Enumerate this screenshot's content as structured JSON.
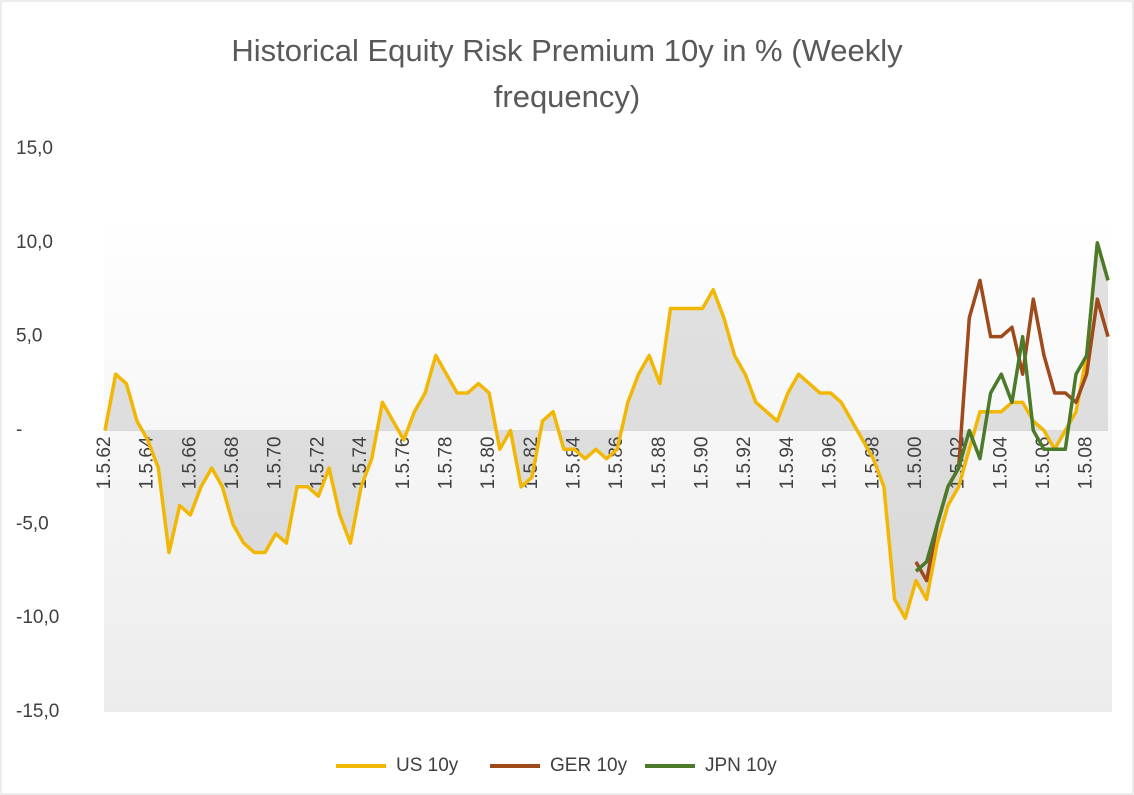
{
  "chart_data": {
    "type": "line",
    "title": "Historical Equity Risk Premium 10y in % (Weekly frequency)",
    "categories": [
      "1.5.62",
      null,
      null,
      null,
      "1.5.64",
      null,
      null,
      null,
      "1.5.66",
      null,
      null,
      null,
      "1.5.68",
      null,
      null,
      null,
      "1.5.70",
      null,
      null,
      null,
      "1.5.72",
      null,
      null,
      null,
      "1.5.74",
      null,
      null,
      null,
      "1.5.76",
      null,
      null,
      null,
      "1.5.78",
      null,
      null,
      null,
      "1.5.80",
      null,
      null,
      null,
      "1.5.82",
      null,
      null,
      null,
      "1.5.84",
      null,
      null,
      null,
      "1.5.86",
      null,
      null,
      null,
      "1.5.88",
      null,
      null,
      null,
      "1.5.90",
      null,
      null,
      null,
      "1.5.92",
      null,
      null,
      null,
      "1.5.94",
      null,
      null,
      null,
      "1.5.96",
      null,
      null,
      null,
      "1.5.98",
      null,
      null,
      null,
      "1.5.00",
      null,
      null,
      null,
      "1.5.02",
      null,
      null,
      null,
      "1.5.04",
      null,
      null,
      null,
      "1.5.06",
      null,
      null,
      null,
      "1.5.08",
      null,
      null
    ],
    "series": [
      {
        "name": "US 10y",
        "color": "#f2b705",
        "values": [
          0,
          3,
          2.5,
          0.5,
          -0.5,
          -2,
          -6.5,
          -4,
          -4.5,
          -3,
          -2,
          -3,
          -5,
          -6,
          -6.5,
          -6.5,
          -5.5,
          -6,
          -3,
          -3,
          -3.5,
          -2,
          -4.5,
          -6,
          -3,
          -1.5,
          1.5,
          0.5,
          -0.5,
          1,
          2,
          4,
          3,
          2,
          2,
          2.5,
          2,
          -1,
          0,
          -3,
          -2.5,
          0.5,
          1,
          -1,
          -1,
          -1.5,
          -1,
          -1.5,
          -1,
          1.5,
          3,
          4,
          2.5,
          6.5,
          6.5,
          6.5,
          6.5,
          7.5,
          6,
          4,
          3,
          1.5,
          1,
          0.5,
          2,
          3,
          2.5,
          2,
          2,
          1.5,
          0.5,
          -0.5,
          -1.5,
          -3,
          -9,
          -10,
          -8,
          -9,
          -6,
          -4,
          -3,
          -1,
          1,
          1,
          1,
          1.5,
          1.5,
          0.5,
          0,
          -1,
          0,
          1,
          4,
          10,
          8
        ]
      },
      {
        "name": "GER 10y",
        "color": "#9e4a1b",
        "values": [
          null,
          null,
          null,
          null,
          null,
          null,
          null,
          null,
          null,
          null,
          null,
          null,
          null,
          null,
          null,
          null,
          null,
          null,
          null,
          null,
          null,
          null,
          null,
          null,
          null,
          null,
          null,
          null,
          null,
          null,
          null,
          null,
          null,
          null,
          null,
          null,
          null,
          null,
          null,
          null,
          null,
          null,
          null,
          null,
          null,
          null,
          null,
          null,
          null,
          null,
          null,
          null,
          null,
          null,
          null,
          null,
          null,
          null,
          null,
          null,
          null,
          null,
          null,
          null,
          null,
          null,
          null,
          null,
          null,
          null,
          null,
          null,
          null,
          null,
          null,
          null,
          -7,
          -8,
          -5,
          -3,
          -2,
          6,
          8,
          5,
          5,
          5.5,
          3,
          7,
          4,
          2,
          2,
          1.5,
          3,
          7,
          5
        ]
      },
      {
        "name": "JPN 10y",
        "color": "#4b7a2a",
        "values": [
          null,
          null,
          null,
          null,
          null,
          null,
          null,
          null,
          null,
          null,
          null,
          null,
          null,
          null,
          null,
          null,
          null,
          null,
          null,
          null,
          null,
          null,
          null,
          null,
          null,
          null,
          null,
          null,
          null,
          null,
          null,
          null,
          null,
          null,
          null,
          null,
          null,
          null,
          null,
          null,
          null,
          null,
          null,
          null,
          null,
          null,
          null,
          null,
          null,
          null,
          null,
          null,
          null,
          null,
          null,
          null,
          null,
          null,
          null,
          null,
          null,
          null,
          null,
          null,
          null,
          null,
          null,
          null,
          null,
          null,
          null,
          null,
          null,
          null,
          null,
          null,
          -7.5,
          -7,
          -5,
          -3,
          -2,
          0,
          -1.5,
          2,
          3,
          1.5,
          5,
          0,
          -1,
          -1,
          -1,
          3,
          4,
          10,
          8
        ]
      }
    ],
    "ylim": [
      -15,
      15
    ],
    "yticks": [
      {
        "value": -15,
        "label": "-15,0"
      },
      {
        "value": -10,
        "label": "-10,0"
      },
      {
        "value": -5,
        "label": "-5,0"
      },
      {
        "value": 0,
        "label": "-"
      },
      {
        "value": 5,
        "label": "5,0"
      },
      {
        "value": 10,
        "label": "10,0"
      },
      {
        "value": 15,
        "label": "15,0"
      }
    ],
    "legend": "bottom"
  }
}
